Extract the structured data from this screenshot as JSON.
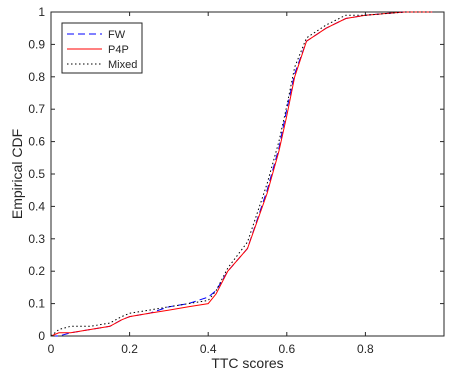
{
  "chart_data": {
    "type": "line",
    "title": "",
    "xlabel": "TTC scores",
    "ylabel": "Empirical CDF",
    "xlim": [
      0,
      1
    ],
    "ylim": [
      0,
      1
    ],
    "xticks": [
      "0",
      "0.2",
      "0.4",
      "0.6",
      "0.8"
    ],
    "xtick_values": [
      0,
      0.2,
      0.4,
      0.6,
      0.8
    ],
    "yticks": [
      "0",
      "0.1",
      "0.2",
      "0.3",
      "0.4",
      "0.5",
      "0.6",
      "0.7",
      "0.8",
      "0.9",
      "1"
    ],
    "ytick_values": [
      0,
      0.1,
      0.2,
      0.3,
      0.4,
      0.5,
      0.6,
      0.7,
      0.8,
      0.9,
      1
    ],
    "grid": false,
    "legend_location": "top-left",
    "series": [
      {
        "name": "FW",
        "color": "#0000ff",
        "line_style": "dashed",
        "x": [
          0.0,
          0.02,
          0.05,
          0.1,
          0.15,
          0.18,
          0.2,
          0.25,
          0.3,
          0.35,
          0.4,
          0.42,
          0.45,
          0.5,
          0.55,
          0.58,
          0.6,
          0.62,
          0.65,
          0.7,
          0.75,
          0.8,
          0.9,
          0.97
        ],
        "y": [
          0.0,
          0.0,
          0.01,
          0.02,
          0.03,
          0.05,
          0.06,
          0.07,
          0.09,
          0.1,
          0.12,
          0.14,
          0.2,
          0.27,
          0.45,
          0.58,
          0.7,
          0.81,
          0.91,
          0.95,
          0.98,
          0.99,
          1.0,
          1.0
        ]
      },
      {
        "name": "P4P",
        "color": "#ff0000",
        "line_style": "solid",
        "x": [
          0.0,
          0.02,
          0.05,
          0.1,
          0.15,
          0.18,
          0.2,
          0.25,
          0.3,
          0.35,
          0.4,
          0.42,
          0.45,
          0.5,
          0.55,
          0.58,
          0.6,
          0.62,
          0.65,
          0.7,
          0.75,
          0.8,
          0.9,
          0.97
        ],
        "y": [
          0.0,
          0.01,
          0.01,
          0.02,
          0.03,
          0.05,
          0.06,
          0.07,
          0.08,
          0.09,
          0.1,
          0.13,
          0.2,
          0.27,
          0.44,
          0.57,
          0.68,
          0.8,
          0.91,
          0.95,
          0.98,
          0.99,
          1.0,
          1.0
        ]
      },
      {
        "name": "Mixed",
        "color": "#000000",
        "line_style": "dotted",
        "x": [
          0.0,
          0.02,
          0.05,
          0.1,
          0.15,
          0.18,
          0.2,
          0.25,
          0.3,
          0.35,
          0.4,
          0.42,
          0.45,
          0.5,
          0.55,
          0.58,
          0.6,
          0.62,
          0.65,
          0.7,
          0.75,
          0.8,
          0.9,
          0.97
        ],
        "y": [
          0.0,
          0.02,
          0.03,
          0.03,
          0.04,
          0.06,
          0.07,
          0.08,
          0.09,
          0.1,
          0.11,
          0.14,
          0.21,
          0.29,
          0.47,
          0.6,
          0.71,
          0.83,
          0.92,
          0.96,
          0.99,
          0.99,
          1.0,
          1.0
        ]
      }
    ]
  }
}
